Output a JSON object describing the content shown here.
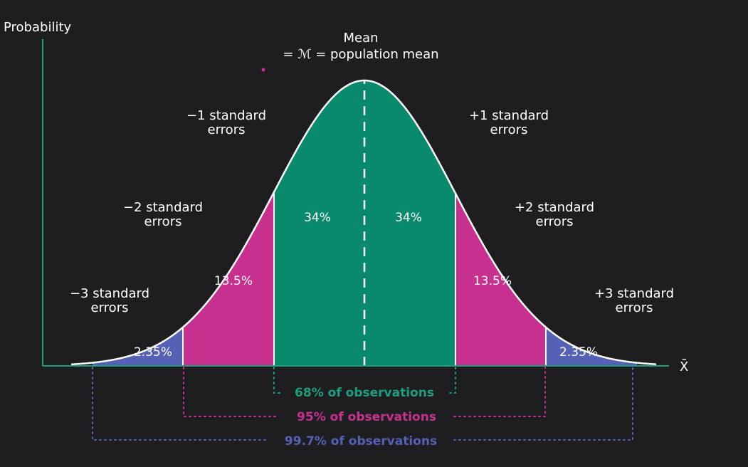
{
  "colors": {
    "background": "#1e1e20",
    "axis": "#1a9e7c",
    "center_band": "#0a8a6c",
    "middle_band": "#c8308f",
    "outer_band": "#5561b4",
    "curve": "#ffffff",
    "text": "#ffffff"
  },
  "axes": {
    "y_label": "Probability",
    "x_label": "X̄"
  },
  "mean": {
    "title": "Mean",
    "definition": "= ℳ = population mean"
  },
  "boundaries": {
    "minus1": [
      "−1 standard",
      "errors"
    ],
    "plus1": [
      "+1 standard",
      "errors"
    ],
    "minus2": [
      "−2 standard",
      "errors"
    ],
    "plus2": [
      "+2 standard",
      "errors"
    ],
    "minus3": [
      "−3 standard",
      "errors"
    ],
    "plus3": [
      "+3 standard",
      "errors"
    ]
  },
  "regions": {
    "center_left": "34%",
    "center_right": "34%",
    "middle_left": "13.5%",
    "middle_right": "13.5%",
    "outer_left": "2.35%",
    "outer_right": "2.35%"
  },
  "observations": {
    "one_sd": "68% of observations",
    "two_sd": "95% of observations",
    "three_sd": "99.7% of observations"
  }
}
